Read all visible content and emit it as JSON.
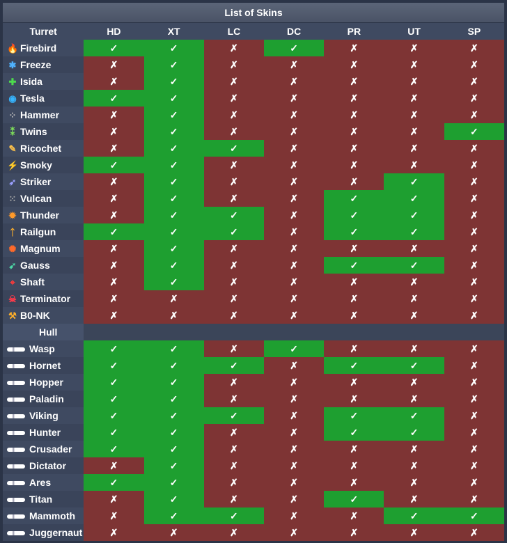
{
  "title": "List of Skins",
  "headers": [
    "Turret",
    "HD",
    "XT",
    "LC",
    "DC",
    "PR",
    "UT",
    "SP"
  ],
  "marks": {
    "yes": "✓",
    "no": "✗"
  },
  "colors": {
    "yes": "#1e9f30",
    "no": "#7e3434",
    "header": "#3f4a61"
  },
  "turret_rows": [
    {
      "name": "Firebird",
      "icon": "flame-icon",
      "glyph": "🔥",
      "color": "#ff5a2a",
      "v": [
        1,
        1,
        0,
        1,
        0,
        0,
        0
      ]
    },
    {
      "name": "Freeze",
      "icon": "snowflake-icon",
      "glyph": "✱",
      "color": "#4fb3ff",
      "v": [
        0,
        1,
        0,
        0,
        0,
        0,
        0
      ]
    },
    {
      "name": "Isida",
      "icon": "cross-icon",
      "glyph": "✚",
      "color": "#4ddb4d",
      "v": [
        0,
        1,
        0,
        0,
        0,
        0,
        0
      ]
    },
    {
      "name": "Tesla",
      "icon": "orb-icon",
      "glyph": "◉",
      "color": "#36b5ff",
      "v": [
        1,
        1,
        0,
        0,
        0,
        0,
        0
      ]
    },
    {
      "name": "Hammer",
      "icon": "pellets-icon",
      "glyph": "⁘",
      "color": "#bbbbbb",
      "v": [
        0,
        1,
        0,
        0,
        0,
        0,
        0
      ]
    },
    {
      "name": "Twins",
      "icon": "twin-shots-icon",
      "glyph": "⁑",
      "color": "#7fe05a",
      "v": [
        0,
        1,
        0,
        0,
        0,
        0,
        1
      ]
    },
    {
      "name": "Ricochet",
      "icon": "pencil-icon",
      "glyph": "✎",
      "color": "#ffc24a",
      "v": [
        0,
        1,
        1,
        0,
        0,
        0,
        0
      ]
    },
    {
      "name": "Smoky",
      "icon": "bolt-icon",
      "glyph": "⚡",
      "color": "#ffe24a",
      "v": [
        1,
        1,
        0,
        0,
        0,
        0,
        0
      ]
    },
    {
      "name": "Striker",
      "icon": "rocket-icon",
      "glyph": "➶",
      "color": "#9aa0ff",
      "v": [
        0,
        1,
        0,
        0,
        0,
        1,
        0
      ]
    },
    {
      "name": "Vulcan",
      "icon": "gatling-icon",
      "glyph": "⁙",
      "color": "#aaaaaa",
      "v": [
        0,
        1,
        0,
        0,
        1,
        1,
        0
      ]
    },
    {
      "name": "Thunder",
      "icon": "burst-icon",
      "glyph": "✹",
      "color": "#ff9a2a",
      "v": [
        0,
        1,
        1,
        0,
        1,
        1,
        0
      ]
    },
    {
      "name": "Railgun",
      "icon": "figure-icon",
      "glyph": "ᛏ",
      "color": "#ffb02a",
      "v": [
        1,
        1,
        1,
        0,
        1,
        1,
        0
      ]
    },
    {
      "name": "Magnum",
      "icon": "explosion-icon",
      "glyph": "✺",
      "color": "#ff6a2a",
      "v": [
        0,
        1,
        0,
        0,
        0,
        0,
        0
      ]
    },
    {
      "name": "Gauss",
      "icon": "arrow-icon",
      "glyph": "➹",
      "color": "#4ddba8",
      "v": [
        0,
        1,
        0,
        0,
        1,
        1,
        0
      ]
    },
    {
      "name": "Shaft",
      "icon": "crosshair-icon",
      "glyph": "⌖",
      "color": "#ff3a3a",
      "v": [
        0,
        1,
        0,
        0,
        0,
        0,
        0
      ]
    },
    {
      "name": "Terminator",
      "icon": "skull-icon",
      "glyph": "☠",
      "color": "#ff3a4a",
      "v": [
        0,
        0,
        0,
        0,
        0,
        0,
        0
      ]
    },
    {
      "name": "B0-NK",
      "icon": "hammer-icon",
      "glyph": "⚒",
      "color": "#ffb02a",
      "v": [
        0,
        0,
        0,
        0,
        0,
        0,
        0
      ]
    }
  ],
  "hull_label": "Hull",
  "hull_rows": [
    {
      "name": "Wasp",
      "icon": "hull-icon",
      "v": [
        1,
        1,
        0,
        1,
        0,
        0,
        0
      ]
    },
    {
      "name": "Hornet",
      "icon": "hull-icon",
      "v": [
        1,
        1,
        1,
        0,
        1,
        1,
        0
      ]
    },
    {
      "name": "Hopper",
      "icon": "hull-icon",
      "v": [
        1,
        1,
        0,
        0,
        0,
        0,
        0
      ]
    },
    {
      "name": "Paladin",
      "icon": "hull-icon",
      "v": [
        1,
        1,
        0,
        0,
        0,
        0,
        0
      ]
    },
    {
      "name": "Viking",
      "icon": "hull-icon",
      "v": [
        1,
        1,
        1,
        0,
        1,
        1,
        0
      ]
    },
    {
      "name": "Hunter",
      "icon": "hull-icon",
      "v": [
        1,
        1,
        0,
        0,
        1,
        1,
        0
      ]
    },
    {
      "name": "Crusader",
      "icon": "hull-icon",
      "v": [
        1,
        1,
        0,
        0,
        0,
        0,
        0
      ]
    },
    {
      "name": "Dictator",
      "icon": "hull-icon",
      "v": [
        0,
        1,
        0,
        0,
        0,
        0,
        0
      ]
    },
    {
      "name": "Ares",
      "icon": "hull-icon",
      "v": [
        1,
        1,
        0,
        0,
        0,
        0,
        0
      ]
    },
    {
      "name": "Titan",
      "icon": "hull-icon",
      "v": [
        0,
        1,
        0,
        0,
        1,
        0,
        0
      ]
    },
    {
      "name": "Mammoth",
      "icon": "hull-icon",
      "v": [
        0,
        1,
        1,
        0,
        0,
        1,
        1
      ]
    },
    {
      "name": "Juggernaut",
      "icon": "hull-icon",
      "v": [
        0,
        0,
        0,
        0,
        0,
        0,
        0
      ]
    }
  ]
}
